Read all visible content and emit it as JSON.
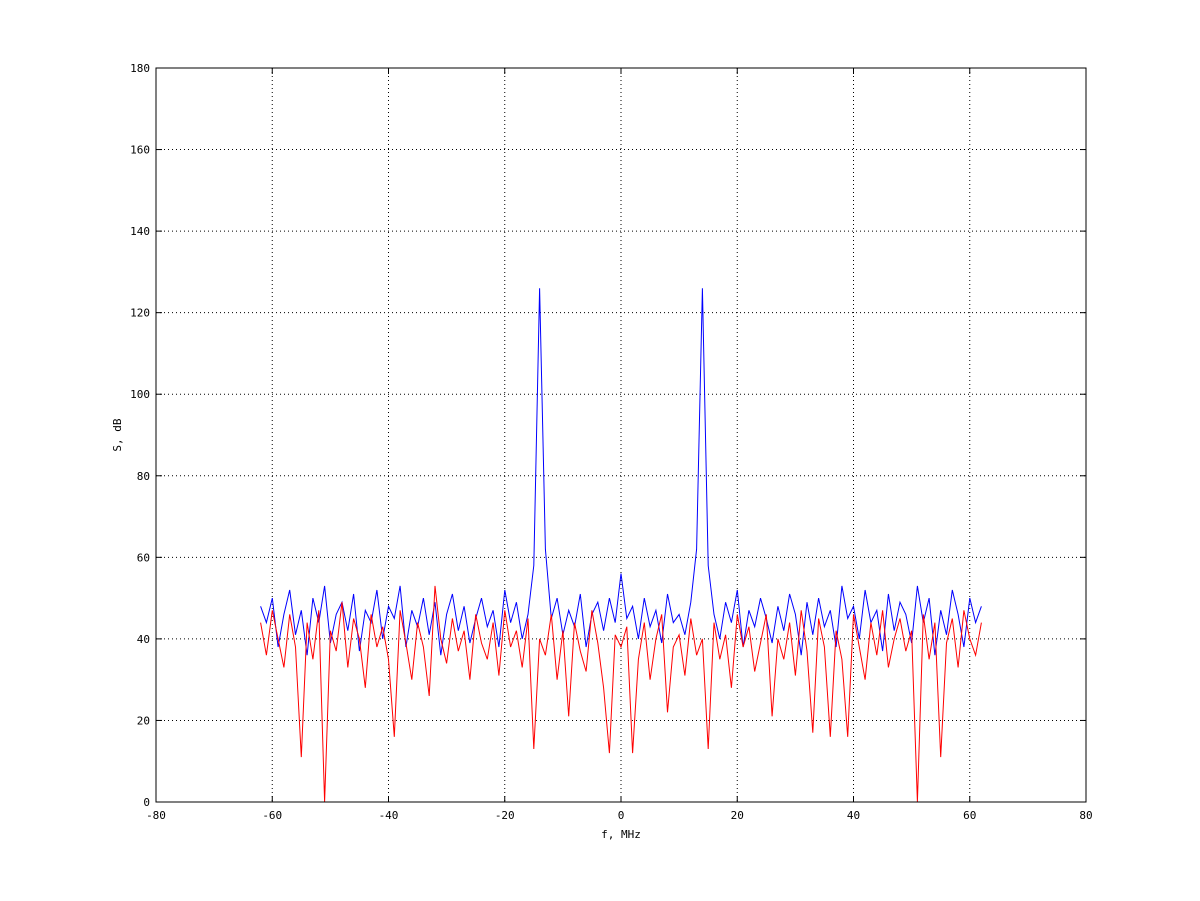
{
  "chart_data": {
    "type": "line",
    "title": "",
    "xlabel": "f, MHz",
    "ylabel": "S, dB",
    "xlim": [
      -80,
      80
    ],
    "ylim": [
      0,
      180
    ],
    "xticks": [
      -80,
      -60,
      -40,
      -20,
      0,
      20,
      40,
      60,
      80
    ],
    "yticks": [
      0,
      20,
      40,
      60,
      80,
      100,
      120,
      140,
      160,
      180
    ],
    "grid": true,
    "x": [
      -62,
      -61,
      -60,
      -59,
      -58,
      -57,
      -56,
      -55,
      -54,
      -53,
      -52,
      -51,
      -50,
      -49,
      -48,
      -47,
      -46,
      -45,
      -44,
      -43,
      -42,
      -41,
      -40,
      -39,
      -38,
      -37,
      -36,
      -35,
      -34,
      -33,
      -32,
      -31,
      -30,
      -29,
      -28,
      -27,
      -26,
      -25,
      -24,
      -23,
      -22,
      -21,
      -20,
      -19,
      -18,
      -17,
      -16,
      -15,
      -14,
      -13,
      -12,
      -11,
      -10,
      -9,
      -8,
      -7,
      -6,
      -5,
      -4,
      -3,
      -2,
      -1,
      0,
      1,
      2,
      3,
      4,
      5,
      6,
      7,
      8,
      9,
      10,
      11,
      12,
      13,
      14,
      15,
      16,
      17,
      18,
      19,
      20,
      21,
      22,
      23,
      24,
      25,
      26,
      27,
      28,
      29,
      30,
      31,
      32,
      33,
      34,
      35,
      36,
      37,
      38,
      39,
      40,
      41,
      42,
      43,
      44,
      45,
      46,
      47,
      48,
      49,
      50,
      51,
      52,
      53,
      54,
      55,
      56,
      57,
      58,
      59,
      60,
      61,
      62
    ],
    "series": [
      {
        "color": "#0000ff",
        "values": [
          48,
          44,
          50,
          38,
          46,
          52,
          41,
          47,
          36,
          50,
          44,
          53,
          39,
          46,
          49,
          42,
          51,
          37,
          47,
          44,
          52,
          40,
          48,
          45,
          53,
          38,
          47,
          43,
          50,
          41,
          49,
          36,
          46,
          51,
          42,
          48,
          39,
          45,
          50,
          43,
          47,
          38,
          52,
          44,
          49,
          40,
          46,
          58,
          126,
          62,
          45,
          50,
          41,
          47,
          43,
          51,
          38,
          46,
          49,
          42,
          50,
          44,
          56,
          45,
          48,
          40,
          50,
          43,
          47,
          39,
          51,
          44,
          46,
          41,
          49,
          62,
          126,
          58,
          46,
          40,
          49,
          44,
          52,
          38,
          47,
          43,
          50,
          45,
          39,
          48,
          42,
          51,
          46,
          36,
          49,
          41,
          50,
          43,
          47,
          38,
          53,
          45,
          48,
          40,
          52,
          44,
          47,
          37,
          51,
          42,
          49,
          46,
          39,
          53,
          44,
          50,
          36,
          47,
          41,
          52,
          46,
          38,
          50,
          44,
          48
        ]
      },
      {
        "color": "#ff0000",
        "values": [
          44,
          36,
          47,
          40,
          33,
          46,
          38,
          11,
          44,
          35,
          47,
          0,
          42,
          37,
          49,
          33,
          45,
          40,
          28,
          46,
          38,
          43,
          35,
          16,
          47,
          39,
          30,
          44,
          38,
          26,
          53,
          40,
          34,
          45,
          37,
          42,
          30,
          46,
          39,
          35,
          44,
          31,
          47,
          38,
          42,
          33,
          45,
          13,
          40,
          36,
          46,
          30,
          42,
          21,
          44,
          37,
          32,
          47,
          39,
          28,
          12,
          41,
          38,
          43,
          12,
          35,
          44,
          30,
          40,
          46,
          22,
          38,
          41,
          31,
          45,
          36,
          40,
          13,
          44,
          35,
          41,
          28,
          46,
          38,
          43,
          32,
          39,
          46,
          21,
          40,
          35,
          44,
          31,
          47,
          37,
          17,
          45,
          38,
          16,
          42,
          35,
          16,
          46,
          38,
          30,
          44,
          36,
          47,
          33,
          40,
          45,
          37,
          42,
          0,
          46,
          35,
          44,
          11,
          39,
          45,
          33,
          47,
          40,
          36,
          44
        ]
      }
    ]
  }
}
